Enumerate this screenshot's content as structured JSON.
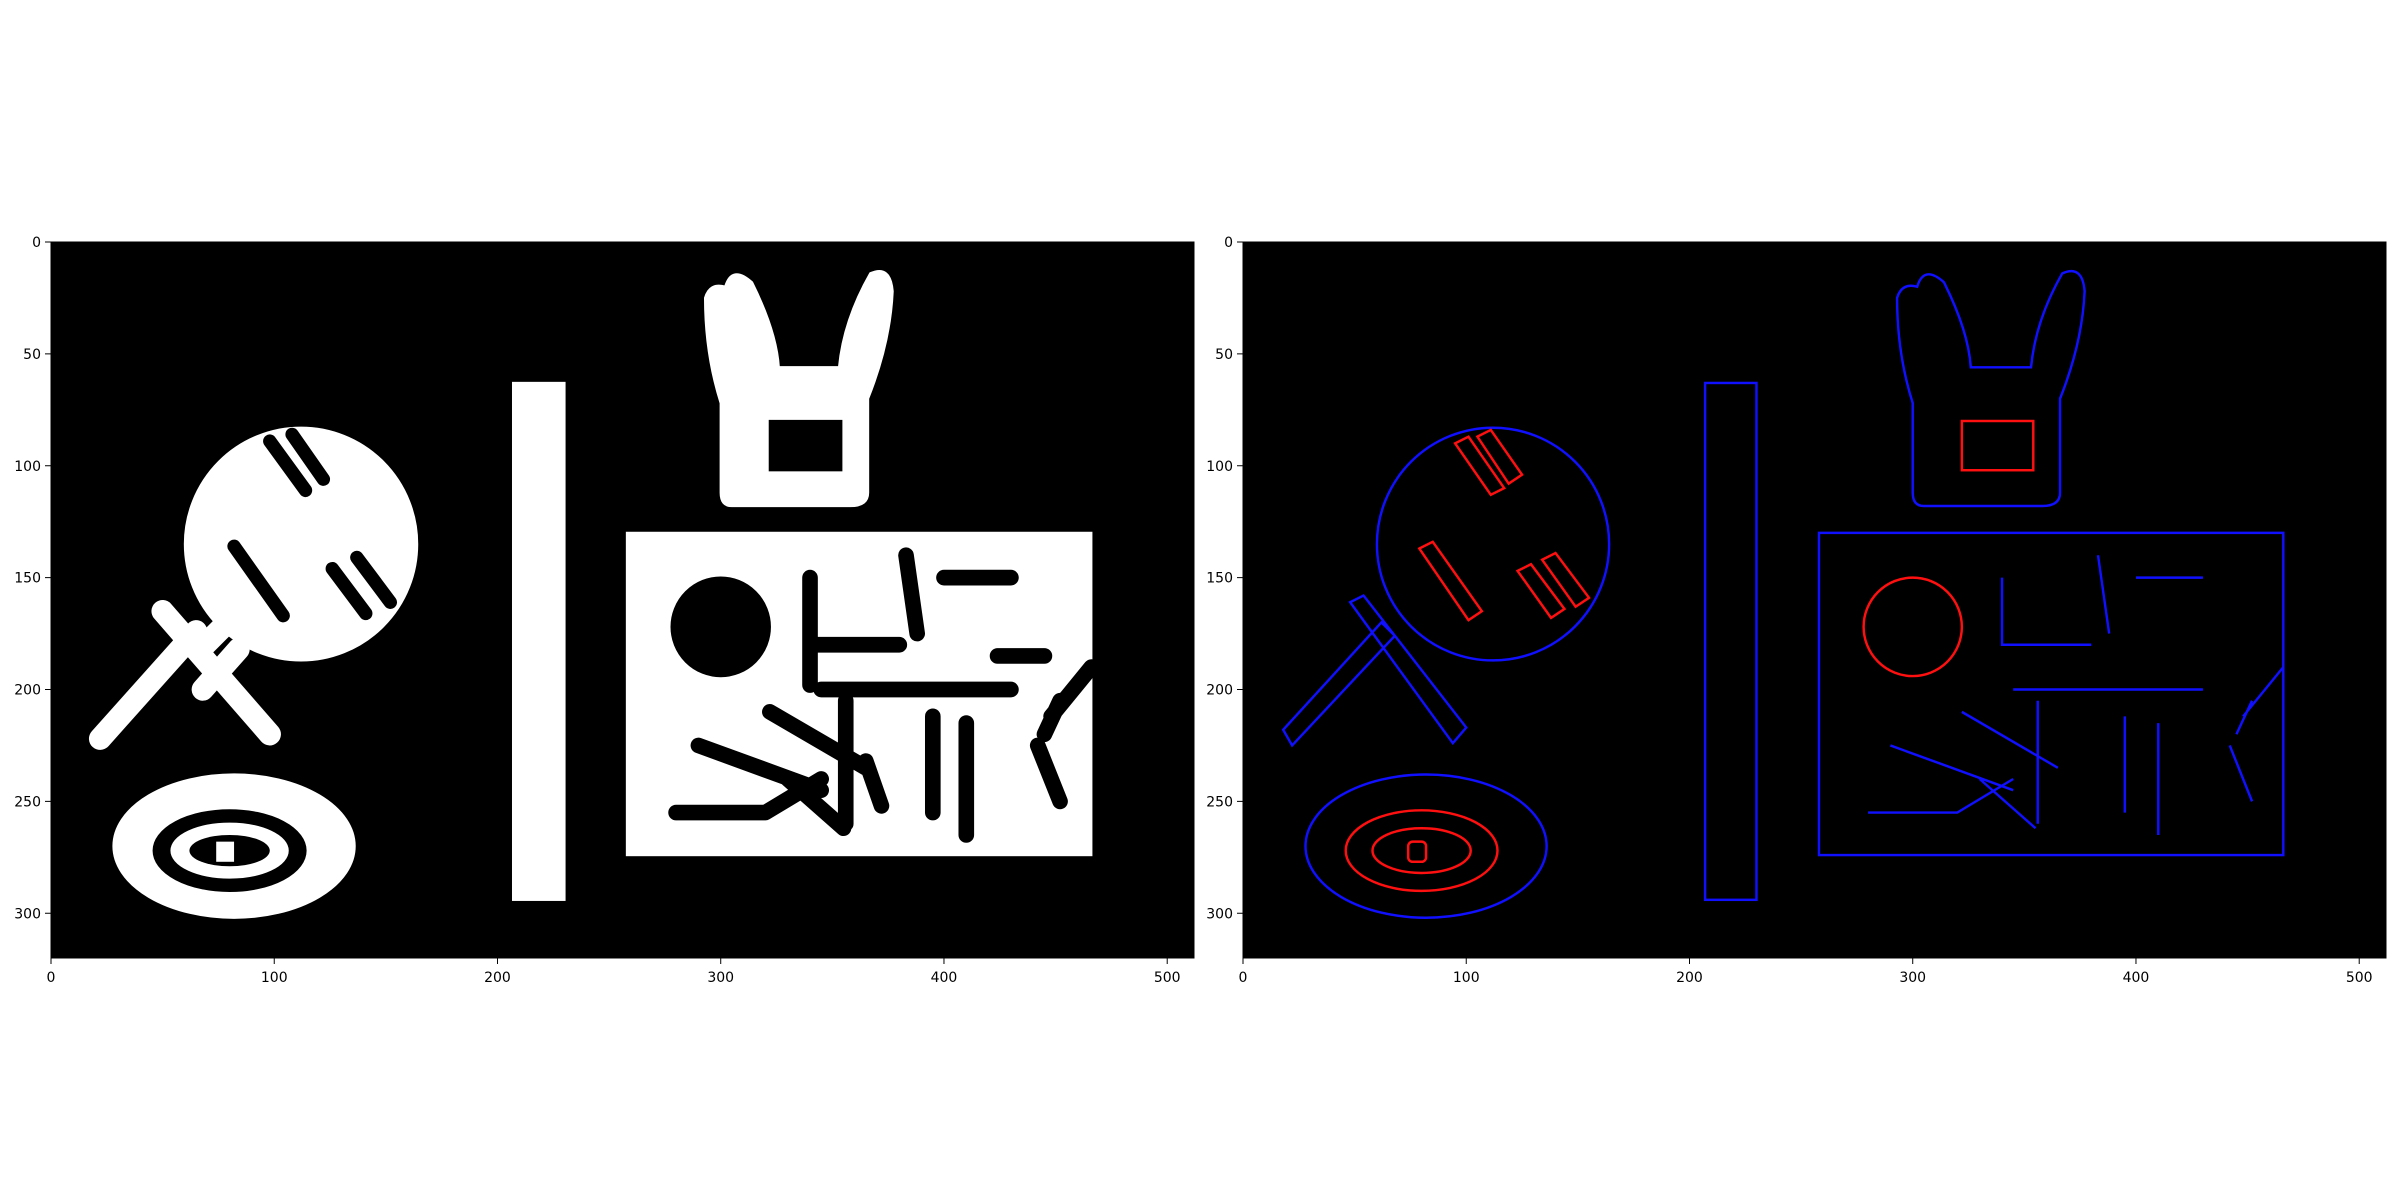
{
  "figure": {
    "panels": [
      {
        "name": "binary-image",
        "x_range": [
          0,
          512
        ],
        "y_range": [
          0,
          320
        ],
        "x_ticks": [
          0,
          100,
          200,
          300,
          400,
          500
        ],
        "y_ticks": [
          0,
          50,
          100,
          150,
          200,
          250,
          300
        ],
        "background": "#000000",
        "foreground": "#ffffff"
      },
      {
        "name": "contour-image",
        "x_range": [
          0,
          512
        ],
        "y_range": [
          0,
          320
        ],
        "x_ticks": [
          0,
          100,
          200,
          300,
          400,
          500
        ],
        "y_ticks": [
          0,
          50,
          100,
          150,
          200,
          250,
          300
        ],
        "background": "#000000",
        "outer_contour_color": "#0000ff",
        "hole_contour_color": "#ff0000"
      }
    ]
  }
}
